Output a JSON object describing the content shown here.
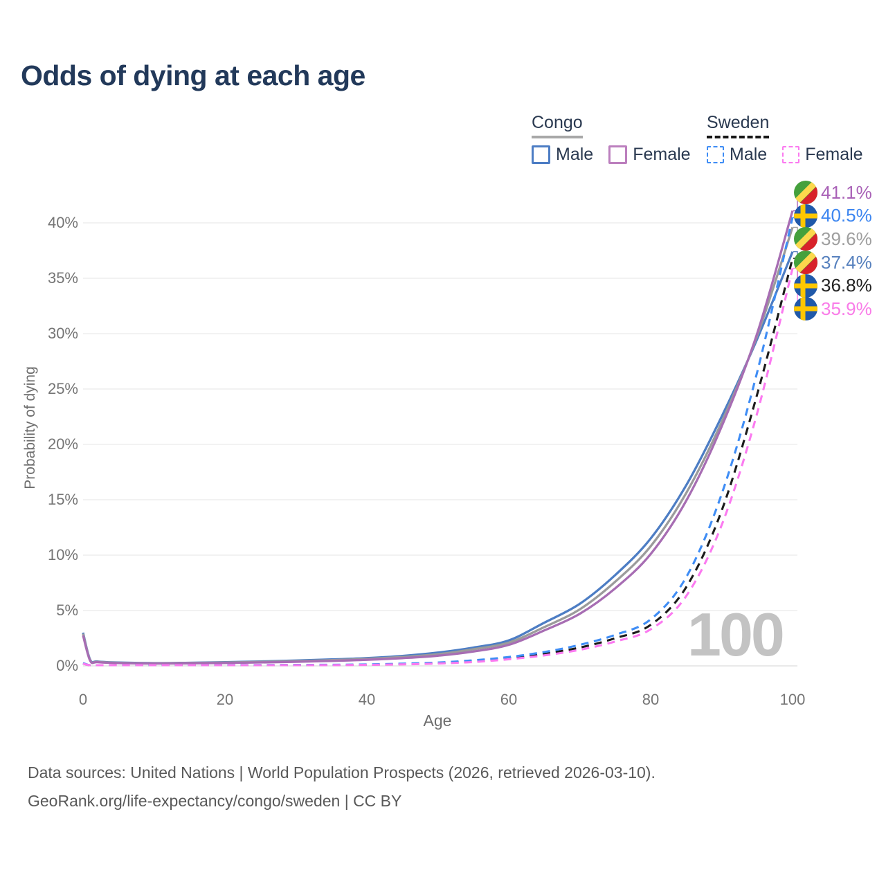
{
  "title": "Odds of dying at each age",
  "legend": {
    "groups": [
      {
        "name": "Congo",
        "line_style": "solid",
        "underline_color": "#a8a8a8",
        "items": [
          {
            "label": "Male",
            "color": "#4d7dc4"
          },
          {
            "label": "Female",
            "color": "#bc7fbe"
          }
        ]
      },
      {
        "name": "Sweden",
        "line_style": "dashed",
        "underline_color": "#161616",
        "items": [
          {
            "label": "Male",
            "color": "#3f8df5"
          },
          {
            "label": "Female",
            "color": "#fb7af0"
          }
        ]
      }
    ]
  },
  "axes": {
    "y_label": "Probability of dying",
    "x_label": "Age",
    "y_ticks": [
      "0%",
      "5%",
      "10%",
      "15%",
      "20%",
      "25%",
      "30%",
      "35%",
      "40%"
    ],
    "x_ticks": [
      "0",
      "20",
      "40",
      "60",
      "80",
      "100"
    ]
  },
  "watermark": "100",
  "end_labels": [
    {
      "flag": "congo",
      "value": "41.1%",
      "color": "#a962b7",
      "series": "Congo Female"
    },
    {
      "flag": "sweden",
      "value": "40.5%",
      "color": "#3d86f0",
      "series": "Sweden Male"
    },
    {
      "flag": "congo",
      "value": "39.6%",
      "color": "#9e9e9e",
      "series": "Congo Both sexes"
    },
    {
      "flag": "congo",
      "value": "37.4%",
      "color": "#5781be",
      "series": "Congo Male"
    },
    {
      "flag": "sweden",
      "value": "36.8%",
      "color": "#222222",
      "series": "Sweden Both sexes"
    },
    {
      "flag": "sweden",
      "value": "35.9%",
      "color": "#f97ce8",
      "series": "Sweden Female"
    }
  ],
  "footer": {
    "line1": "Data sources: United Nations | World Population Prospects (2026, retrieved 2026-03-10).",
    "line2": "GeoRank.org/life-expectancy/congo/sweden | CC BY"
  },
  "chart_data": {
    "type": "line",
    "title": "Odds of dying at each age",
    "xlabel": "Age",
    "ylabel": "Probability of dying",
    "xlim": [
      0,
      100
    ],
    "ylim": [
      0,
      43
    ],
    "grid": true,
    "legend_position": "top-right",
    "x": [
      0,
      1,
      2,
      5,
      10,
      15,
      20,
      25,
      30,
      35,
      40,
      45,
      50,
      55,
      60,
      65,
      70,
      75,
      80,
      85,
      90,
      95,
      100
    ],
    "series": [
      {
        "name": "Congo Male",
        "country": "Congo",
        "sex": "Male",
        "style": "solid",
        "color": "#4d7dc4",
        "end_value_pct": 37.4,
        "values": [
          3.0,
          0.55,
          0.4,
          0.3,
          0.25,
          0.28,
          0.33,
          0.4,
          0.48,
          0.58,
          0.7,
          0.9,
          1.2,
          1.65,
          2.3,
          3.9,
          5.6,
          8.2,
          11.5,
          16.3,
          22.5,
          29.5,
          37.4
        ]
      },
      {
        "name": "Congo Both sexes",
        "country": "Congo",
        "sex": "Both",
        "style": "solid",
        "color": "#9b9b9b",
        "end_value_pct": 39.6,
        "values": [
          2.9,
          0.5,
          0.37,
          0.28,
          0.23,
          0.26,
          0.3,
          0.36,
          0.43,
          0.52,
          0.63,
          0.8,
          1.05,
          1.5,
          2.1,
          3.5,
          5.1,
          7.6,
          10.8,
          15.6,
          22.0,
          29.8,
          39.6
        ]
      },
      {
        "name": "Congo Female",
        "country": "Congo",
        "sex": "Female",
        "style": "solid",
        "color": "#a76db3",
        "end_value_pct": 41.1,
        "values": [
          2.75,
          0.46,
          0.34,
          0.25,
          0.21,
          0.23,
          0.26,
          0.31,
          0.37,
          0.45,
          0.55,
          0.7,
          0.92,
          1.3,
          1.9,
          3.2,
          4.7,
          7.0,
          10.1,
          14.9,
          21.6,
          30.0,
          41.1
        ]
      },
      {
        "name": "Sweden Both sexes",
        "country": "Sweden",
        "sex": "Both",
        "style": "dashed",
        "color": "#1b1b1b",
        "end_value_pct": 36.8,
        "values": [
          0.22,
          0.03,
          0.02,
          0.01,
          0.01,
          0.03,
          0.05,
          0.06,
          0.07,
          0.09,
          0.11,
          0.17,
          0.26,
          0.42,
          0.7,
          1.1,
          1.65,
          2.5,
          3.7,
          7.1,
          14.0,
          24.5,
          36.8
        ]
      },
      {
        "name": "Sweden Male",
        "country": "Sweden",
        "sex": "Male",
        "style": "dashed",
        "color": "#3f8df5",
        "end_value_pct": 40.5,
        "values": [
          0.25,
          0.03,
          0.02,
          0.01,
          0.01,
          0.04,
          0.07,
          0.08,
          0.09,
          0.1,
          0.13,
          0.2,
          0.3,
          0.5,
          0.8,
          1.25,
          1.9,
          2.8,
          4.2,
          8.0,
          15.5,
          26.5,
          40.5
        ]
      },
      {
        "name": "Sweden Female",
        "country": "Sweden",
        "sex": "Female",
        "style": "dashed",
        "color": "#fb7af0",
        "end_value_pct": 35.9,
        "values": [
          0.2,
          0.02,
          0.015,
          0.01,
          0.01,
          0.02,
          0.03,
          0.04,
          0.05,
          0.07,
          0.09,
          0.14,
          0.21,
          0.35,
          0.6,
          0.95,
          1.45,
          2.2,
          3.3,
          6.3,
          12.7,
          22.8,
          35.9
        ]
      }
    ]
  }
}
